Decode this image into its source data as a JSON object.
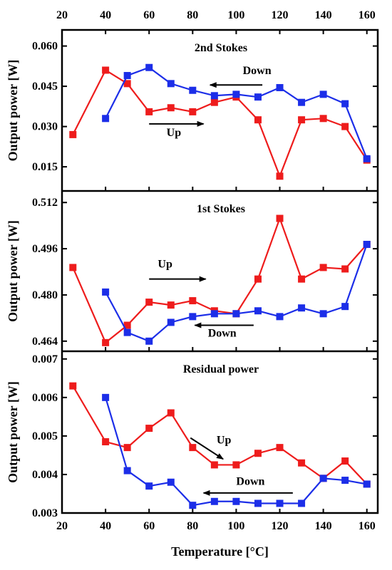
{
  "figure": {
    "xlabel": "Temperature [°C]",
    "x_ticks": [
      20,
      40,
      60,
      80,
      100,
      120,
      140,
      160
    ],
    "xlim": [
      20,
      165
    ]
  },
  "colors": {
    "up": "#ee1c1c",
    "down": "#1c2ee8"
  },
  "chart_data": [
    {
      "type": "line",
      "title": "2nd Stokes",
      "ylabel": "Output power [W]",
      "ylim": [
        0.006,
        0.066
      ],
      "y_ticks": [
        "0.015",
        "0.030",
        "0.045",
        "0.060"
      ],
      "series": [
        {
          "key": "up",
          "x": [
            25,
            40,
            50,
            60,
            70,
            80,
            90,
            100,
            110,
            120,
            130,
            140,
            150,
            160
          ],
          "values": [
            0.027,
            0.051,
            0.046,
            0.0355,
            0.037,
            0.0355,
            0.039,
            0.041,
            0.0325,
            0.0115,
            0.0325,
            0.033,
            0.03,
            0.0175
          ]
        },
        {
          "key": "down",
          "x": [
            40,
            50,
            60,
            70,
            80,
            90,
            100,
            110,
            120,
            130,
            140,
            150,
            160
          ],
          "values": [
            0.033,
            0.049,
            0.052,
            0.046,
            0.0435,
            0.0415,
            0.042,
            0.041,
            0.0445,
            0.039,
            0.042,
            0.0385,
            0.018
          ]
        }
      ],
      "annotations": [
        {
          "label": "Down",
          "dir": "left",
          "x1": 112,
          "x2": 88,
          "y": 0.0455,
          "tx": 103,
          "ty": 0.0495
        },
        {
          "label": "Up",
          "dir": "right",
          "x1": 60,
          "x2": 85,
          "y": 0.031,
          "tx": 68,
          "ty": 0.0265
        }
      ]
    },
    {
      "type": "line",
      "title": "1st Stokes",
      "ylabel": "Output power [W]",
      "ylim": [
        0.4605,
        0.516
      ],
      "y_ticks": [
        "0.464",
        "0.480",
        "0.496",
        "0.512"
      ],
      "series": [
        {
          "key": "up",
          "x": [
            25,
            40,
            50,
            60,
            70,
            80,
            90,
            100,
            110,
            120,
            130,
            140,
            150,
            160
          ],
          "values": [
            0.4895,
            0.4635,
            0.4695,
            0.4775,
            0.4765,
            0.478,
            0.4745,
            0.4735,
            0.4855,
            0.5065,
            0.4855,
            0.4895,
            0.489,
            0.4975
          ]
        },
        {
          "key": "down",
          "x": [
            40,
            50,
            60,
            70,
            80,
            90,
            100,
            110,
            120,
            130,
            140,
            150,
            160
          ],
          "values": [
            0.481,
            0.467,
            0.464,
            0.4705,
            0.4725,
            0.4735,
            0.4735,
            0.4745,
            0.4725,
            0.4755,
            0.4735,
            0.476,
            0.4975
          ]
        }
      ],
      "annotations": [
        {
          "label": "Up",
          "dir": "right",
          "x1": 60,
          "x2": 86,
          "y": 0.4855,
          "tx": 64,
          "ty": 0.4895
        },
        {
          "label": "Down",
          "dir": "left",
          "x1": 108,
          "x2": 81,
          "y": 0.4695,
          "tx": 87,
          "ty": 0.4655
        }
      ]
    },
    {
      "type": "line",
      "title": "Residual power",
      "ylabel": "Output power [W]",
      "ylim": [
        0.003,
        0.0072
      ],
      "y_ticks": [
        "0.003",
        "0.004",
        "0.005",
        "0.006",
        "0.007"
      ],
      "series": [
        {
          "key": "up",
          "x": [
            25,
            40,
            50,
            60,
            70,
            80,
            90,
            100,
            110,
            120,
            130,
            140,
            150,
            160
          ],
          "values": [
            0.0063,
            0.00485,
            0.0047,
            0.0052,
            0.0056,
            0.0047,
            0.00425,
            0.00425,
            0.00455,
            0.0047,
            0.0043,
            0.0039,
            0.00435,
            0.00375
          ]
        },
        {
          "key": "down",
          "x": [
            40,
            50,
            60,
            70,
            80,
            90,
            100,
            110,
            120,
            130,
            140,
            150,
            160
          ],
          "values": [
            0.006,
            0.0041,
            0.0037,
            0.0038,
            0.0032,
            0.0033,
            0.0033,
            0.00325,
            0.00325,
            0.00325,
            0.0039,
            0.00385,
            0.00375
          ]
        }
      ],
      "annotations": [
        {
          "label": "Up",
          "dir": "diag",
          "x1": 79,
          "x2": 94,
          "y1": 0.00495,
          "y2": 0.0044,
          "tx": 91,
          "ty": 0.0048
        },
        {
          "label": "Down",
          "dir": "left",
          "x1": 126,
          "x2": 85,
          "y": 0.00352,
          "tx": 100,
          "ty": 0.00373
        }
      ]
    }
  ]
}
